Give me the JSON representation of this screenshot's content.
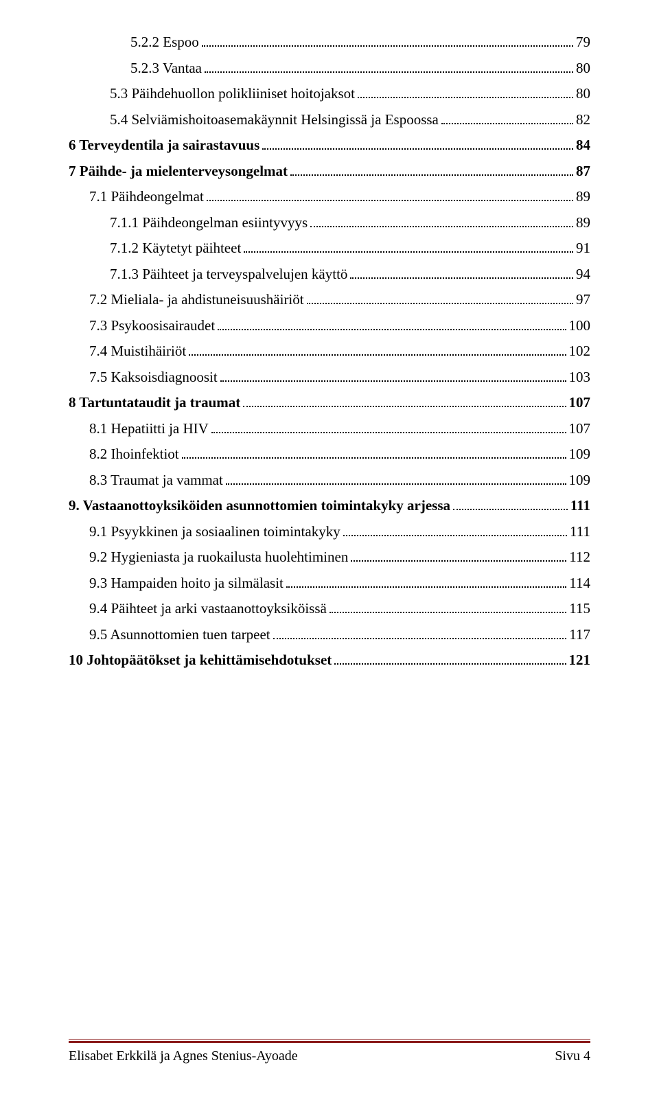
{
  "toc": [
    {
      "title": "5.2.2 Espoo",
      "page": "79",
      "indent": 3,
      "bold": false
    },
    {
      "title": "5.2.3 Vantaa",
      "page": "80",
      "indent": 3,
      "bold": false
    },
    {
      "title": "5.3 Päihdehuollon polikliiniset hoitojaksot",
      "page": "80",
      "indent": 2,
      "bold": false
    },
    {
      "title": "5.4 Selviämishoitoasemakäynnit Helsingissä ja Espoossa",
      "page": "82",
      "indent": 2,
      "bold": false
    },
    {
      "title": "6 Terveydentila ja sairastavuus",
      "page": "84",
      "indent": 0,
      "bold": true
    },
    {
      "title": "7 Päihde- ja mielenterveysongelmat",
      "page": "87",
      "indent": 0,
      "bold": true
    },
    {
      "title": "7.1 Päihdeongelmat",
      "page": "89",
      "indent": 1,
      "bold": false
    },
    {
      "title": "7.1.1 Päihdeongelman esiintyvyys",
      "page": "89",
      "indent": 2,
      "bold": false
    },
    {
      "title": "7.1.2 Käytetyt päihteet",
      "page": "91",
      "indent": 2,
      "bold": false
    },
    {
      "title": "7.1.3 Päihteet ja terveyspalvelujen käyttö",
      "page": "94",
      "indent": 2,
      "bold": false
    },
    {
      "title": "7.2 Mieliala- ja ahdistuneisuushäiriöt",
      "page": "97",
      "indent": 1,
      "bold": false
    },
    {
      "title": "7.3 Psykoosisairaudet",
      "page": "100",
      "indent": 1,
      "bold": false
    },
    {
      "title": "7.4 Muistihäiriöt",
      "page": "102",
      "indent": 1,
      "bold": false
    },
    {
      "title": "7.5 Kaksoisdiagnoosit",
      "page": "103",
      "indent": 1,
      "bold": false
    },
    {
      "title": "8 Tartuntataudit ja traumat",
      "page": "107",
      "indent": 0,
      "bold": true
    },
    {
      "title": "8.1 Hepatiitti ja HIV",
      "page": "107",
      "indent": 1,
      "bold": false
    },
    {
      "title": "8.2 Ihoinfektiot",
      "page": "109",
      "indent": 1,
      "bold": false
    },
    {
      "title": "8.3 Traumat ja vammat",
      "page": "109",
      "indent": 1,
      "bold": false
    },
    {
      "title": "9. Vastaanottoyksiköiden asunnottomien toimintakyky arjessa",
      "page": "111",
      "indent": 0,
      "bold": true
    },
    {
      "title": "9.1 Psyykkinen ja sosiaalinen toimintakyky",
      "page": "111",
      "indent": 1,
      "bold": false
    },
    {
      "title": "9.2 Hygieniasta ja ruokailusta huolehtiminen",
      "page": "112",
      "indent": 1,
      "bold": false
    },
    {
      "title": "9.3 Hampaiden hoito ja silmälasit",
      "page": "114",
      "indent": 1,
      "bold": false
    },
    {
      "title": "9.4 Päihteet ja arki vastaanottoyksiköissä",
      "page": "115",
      "indent": 1,
      "bold": false
    },
    {
      "title": "9.5 Asunnottomien tuen tarpeet",
      "page": "117",
      "indent": 1,
      "bold": false
    },
    {
      "title": "10 Johtopäätökset ja kehittämisehdotukset",
      "page": "121",
      "indent": 0,
      "bold": true
    }
  ],
  "footer": {
    "authors": "Elisabet Erkkilä ja Agnes Stenius-Ayoade",
    "page_label": "Sivu 4"
  },
  "colors": {
    "rule": "#8a1a1a",
    "text": "#000000",
    "background": "#ffffff"
  }
}
